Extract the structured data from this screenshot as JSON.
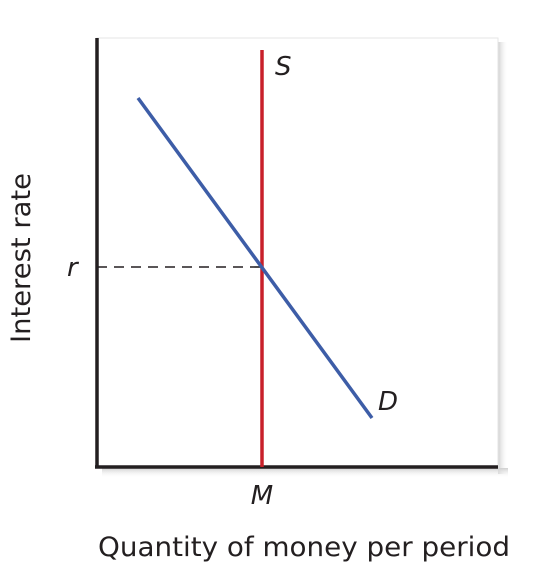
{
  "diagram": {
    "x_axis_label": "Quantity of money per period",
    "y_axis_label": "Interest rate",
    "supply_label": "S",
    "demand_label": "D",
    "equilibrium_rate_label": "r",
    "equilibrium_quantity_label": "M"
  },
  "colors": {
    "supply": "#c8202a",
    "demand": "#3d5da7",
    "axis": "#231f20",
    "dashed_guide": "#231f20",
    "plot_shadow": "#dddddd"
  }
}
